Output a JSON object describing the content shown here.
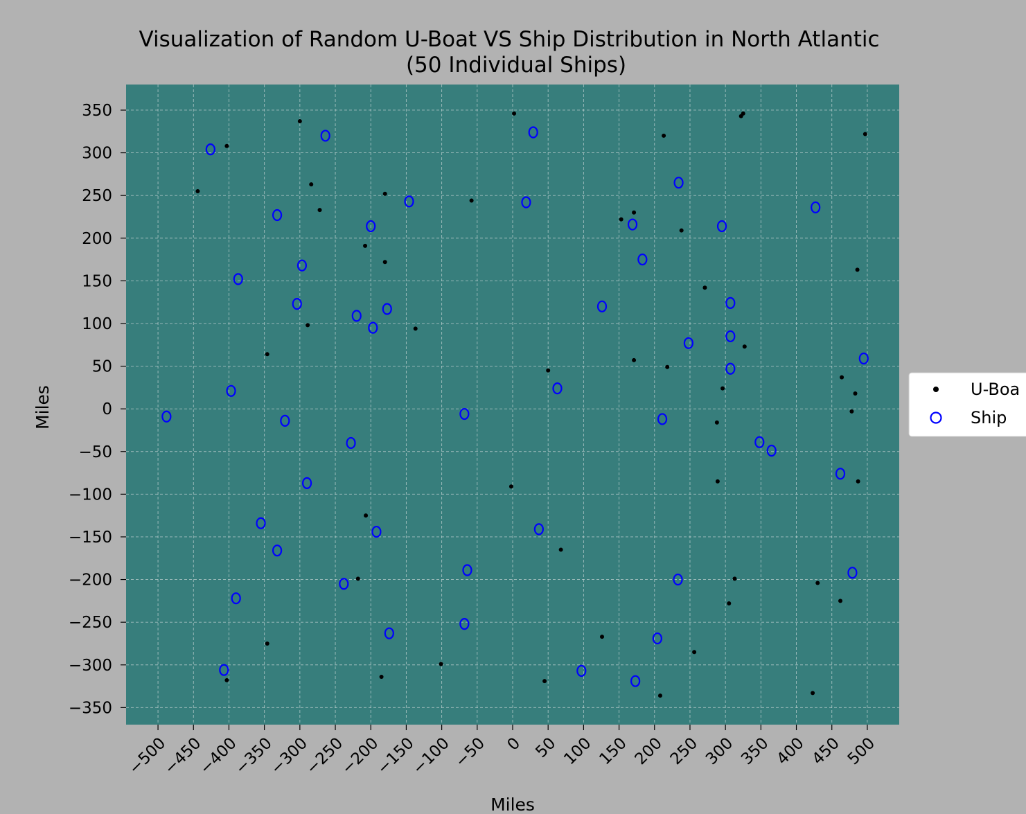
{
  "chart_data": {
    "type": "scatter",
    "title": "Visualization of Random U-Boat VS Ship Distribution in North Atlantic",
    "subtitle": "(50 Individual Ships)",
    "xlabel": "Miles",
    "ylabel": "Miles",
    "xlim": [
      -545,
      545
    ],
    "ylim": [
      -370,
      380
    ],
    "xticks": [
      -500,
      -450,
      -400,
      -350,
      -300,
      -250,
      -200,
      -150,
      -100,
      -50,
      0,
      50,
      100,
      150,
      200,
      250,
      300,
      350,
      400,
      450,
      500
    ],
    "yticks": [
      -350,
      -300,
      -250,
      -200,
      -150,
      -100,
      -50,
      0,
      50,
      100,
      150,
      200,
      250,
      300,
      350
    ],
    "grid": true,
    "legend_position": "right",
    "colors": {
      "figure_bg": "#b2b2b2",
      "plot_bg": "#377e7c",
      "uboat": "#000000",
      "ship": "#0000ff",
      "grid": "#c8d6d5"
    },
    "series": [
      {
        "name": "U-Boat",
        "legend_label": "U-Boa",
        "marker": "dot",
        "points": [
          [
            -444,
            255
          ],
          [
            -403,
            308
          ],
          [
            -300,
            337
          ],
          [
            -284,
            263
          ],
          [
            -272,
            233
          ],
          [
            -180,
            252
          ],
          [
            -208,
            191
          ],
          [
            -180,
            172
          ],
          [
            -58,
            244
          ],
          [
            2,
            346
          ],
          [
            -289,
            98
          ],
          [
            -346,
            64
          ],
          [
            -137,
            94
          ],
          [
            50,
            45
          ],
          [
            -2,
            -91
          ],
          [
            -207,
            -125
          ],
          [
            -218,
            -199
          ],
          [
            -185,
            -314
          ],
          [
            -101,
            -299
          ],
          [
            -346,
            -275
          ],
          [
            -403,
            -318
          ],
          [
            68,
            -165
          ],
          [
            45,
            -319
          ],
          [
            126,
            -267
          ],
          [
            208,
            -336
          ],
          [
            256,
            -285
          ],
          [
            153,
            222
          ],
          [
            171,
            230
          ],
          [
            213,
            320
          ],
          [
            238,
            209
          ],
          [
            271,
            142
          ],
          [
            171,
            57
          ],
          [
            218,
            49
          ],
          [
            296,
            24
          ],
          [
            288,
            -16
          ],
          [
            289,
            -85
          ],
          [
            322,
            343
          ],
          [
            325,
            346
          ],
          [
            497,
            322
          ],
          [
            486,
            163
          ],
          [
            327,
            73
          ],
          [
            464,
            37
          ],
          [
            483,
            18
          ],
          [
            478,
            -3
          ],
          [
            487,
            -85
          ],
          [
            313,
            -199
          ],
          [
            305,
            -228
          ],
          [
            430,
            -204
          ],
          [
            462,
            -225
          ],
          [
            423,
            -333
          ]
        ]
      },
      {
        "name": "Ship",
        "legend_label": "Ship",
        "marker": "ring",
        "points": [
          [
            -426,
            304
          ],
          [
            -264,
            320
          ],
          [
            -332,
            227
          ],
          [
            -200,
            214
          ],
          [
            -146,
            243
          ],
          [
            -297,
            168
          ],
          [
            -387,
            152
          ],
          [
            -304,
            123
          ],
          [
            -220,
            109
          ],
          [
            -197,
            95
          ],
          [
            -177,
            117
          ],
          [
            -397,
            21
          ],
          [
            -488,
            -9
          ],
          [
            -321,
            -14
          ],
          [
            -68,
            -6
          ],
          [
            -228,
            -40
          ],
          [
            -290,
            -87
          ],
          [
            -355,
            -134
          ],
          [
            -332,
            -166
          ],
          [
            -192,
            -144
          ],
          [
            -64,
            -189
          ],
          [
            -238,
            -205
          ],
          [
            -390,
            -222
          ],
          [
            -174,
            -263
          ],
          [
            -68,
            -252
          ],
          [
            -407,
            -306
          ],
          [
            29,
            324
          ],
          [
            19,
            242
          ],
          [
            234,
            265
          ],
          [
            427,
            236
          ],
          [
            295,
            214
          ],
          [
            169,
            216
          ],
          [
            183,
            175
          ],
          [
            126,
            120
          ],
          [
            307,
            124
          ],
          [
            248,
            77
          ],
          [
            307,
            85
          ],
          [
            307,
            47
          ],
          [
            495,
            59
          ],
          [
            63,
            24
          ],
          [
            211,
            -12
          ],
          [
            348,
            -39
          ],
          [
            365,
            -49
          ],
          [
            462,
            -76
          ],
          [
            37,
            -141
          ],
          [
            233,
            -200
          ],
          [
            479,
            -192
          ],
          [
            97,
            -307
          ],
          [
            204,
            -269
          ],
          [
            173,
            -319
          ]
        ]
      }
    ]
  }
}
